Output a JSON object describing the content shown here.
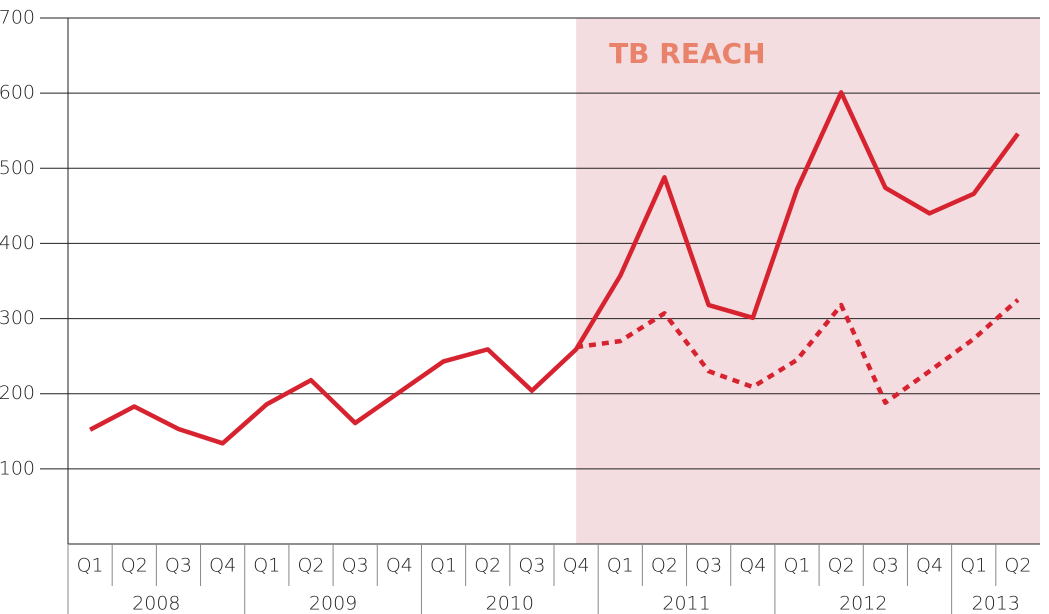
{
  "chart_data": {
    "type": "line",
    "annotation": "TB REACH",
    "highlight_color": "#f4dde0",
    "annotation_color": "#e8826a",
    "groups": [
      {
        "label": "2008",
        "categories": [
          "Q1",
          "Q2",
          "Q3",
          "Q4"
        ]
      },
      {
        "label": "2009",
        "categories": [
          "Q1",
          "Q2",
          "Q3",
          "Q4"
        ]
      },
      {
        "label": "2010",
        "categories": [
          "Q1",
          "Q2",
          "Q3",
          "Q4"
        ]
      },
      {
        "label": "2011",
        "categories": [
          "Q1",
          "Q2",
          "Q3",
          "Q4"
        ]
      },
      {
        "label": "2012",
        "categories": [
          "Q1",
          "Q2",
          "Q3",
          "Q4"
        ]
      },
      {
        "label": "2013",
        "categories": [
          "Q1",
          "Q2"
        ]
      }
    ],
    "series": [
      {
        "color": "#d7232f",
        "dash": false,
        "values": [
          152,
          183,
          153,
          134,
          186,
          218,
          161,
          202,
          243,
          259,
          204,
          259,
          357,
          488,
          318,
          301,
          472,
          601,
          474,
          440,
          466,
          546
        ]
      },
      {
        "color": "#d7232f",
        "dash": true,
        "values": [
          null,
          null,
          null,
          null,
          null,
          null,
          null,
          null,
          null,
          null,
          null,
          262,
          270,
          307,
          230,
          209,
          245,
          318,
          188,
          230,
          273,
          325
        ]
      }
    ],
    "ylim": [
      0,
      700
    ],
    "yticks": [
      100,
      200,
      300,
      400,
      500,
      600,
      700
    ],
    "grid": true
  }
}
